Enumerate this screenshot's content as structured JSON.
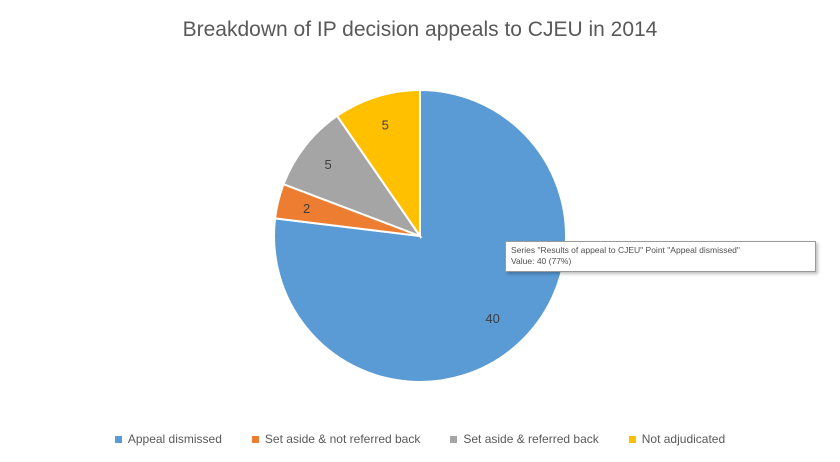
{
  "chart_data": {
    "type": "pie",
    "title": "Breakdown of IP decision appeals to CJEU in 2014",
    "series_name": "Results of appeal to CJEU",
    "categories": [
      "Appeal dismissed",
      "Set aside & not referred back",
      "Set aside & referred back",
      "Not adjudicated"
    ],
    "values": [
      40,
      2,
      5,
      5
    ],
    "data_labels": [
      "40",
      "2",
      "5",
      "5"
    ],
    "colors": [
      "#5B9BD5",
      "#ED7D31",
      "#A5A5A5",
      "#FFC000"
    ],
    "legend_position": "bottom",
    "start_angle_deg": 0,
    "direction": "clockwise"
  },
  "tooltip": {
    "line1": "Series \"Results of appeal to CJEU\" Point \"Appeal dismissed\"",
    "line2": "Value: 40 (77%)"
  }
}
